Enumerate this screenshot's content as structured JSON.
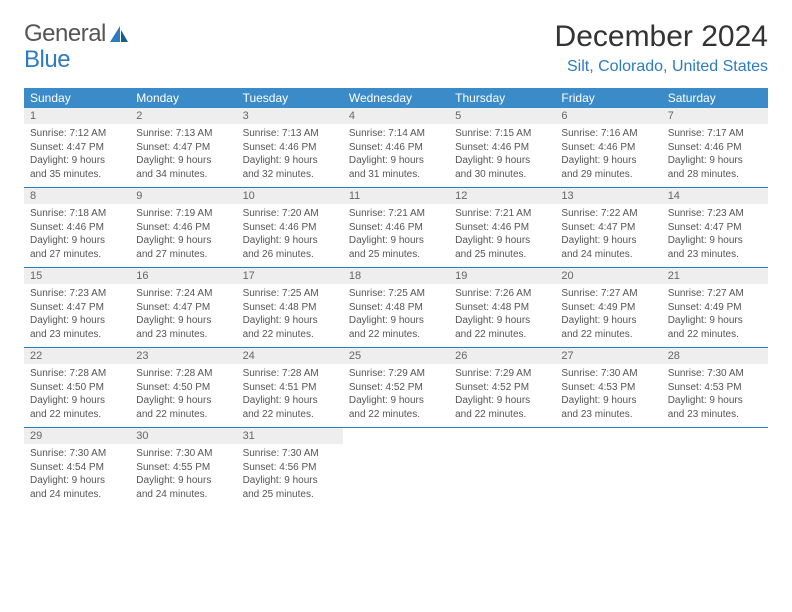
{
  "logo": {
    "word1": "General",
    "word2": "Blue"
  },
  "title": "December 2024",
  "location": "Silt, Colorado, United States",
  "colors": {
    "header_bg": "#3b8bc9",
    "header_text": "#ffffff",
    "accent": "#2b7cc0",
    "daynum_bg": "#eeeeee",
    "text": "#555555",
    "rule": "#2b7cc0"
  },
  "daysOfWeek": [
    "Sunday",
    "Monday",
    "Tuesday",
    "Wednesday",
    "Thursday",
    "Friday",
    "Saturday"
  ],
  "weeks": [
    [
      {
        "n": "1",
        "sunrise": "Sunrise: 7:12 AM",
        "sunset": "Sunset: 4:47 PM",
        "daylight": "Daylight: 9 hours and 35 minutes."
      },
      {
        "n": "2",
        "sunrise": "Sunrise: 7:13 AM",
        "sunset": "Sunset: 4:47 PM",
        "daylight": "Daylight: 9 hours and 34 minutes."
      },
      {
        "n": "3",
        "sunrise": "Sunrise: 7:13 AM",
        "sunset": "Sunset: 4:46 PM",
        "daylight": "Daylight: 9 hours and 32 minutes."
      },
      {
        "n": "4",
        "sunrise": "Sunrise: 7:14 AM",
        "sunset": "Sunset: 4:46 PM",
        "daylight": "Daylight: 9 hours and 31 minutes."
      },
      {
        "n": "5",
        "sunrise": "Sunrise: 7:15 AM",
        "sunset": "Sunset: 4:46 PM",
        "daylight": "Daylight: 9 hours and 30 minutes."
      },
      {
        "n": "6",
        "sunrise": "Sunrise: 7:16 AM",
        "sunset": "Sunset: 4:46 PM",
        "daylight": "Daylight: 9 hours and 29 minutes."
      },
      {
        "n": "7",
        "sunrise": "Sunrise: 7:17 AM",
        "sunset": "Sunset: 4:46 PM",
        "daylight": "Daylight: 9 hours and 28 minutes."
      }
    ],
    [
      {
        "n": "8",
        "sunrise": "Sunrise: 7:18 AM",
        "sunset": "Sunset: 4:46 PM",
        "daylight": "Daylight: 9 hours and 27 minutes."
      },
      {
        "n": "9",
        "sunrise": "Sunrise: 7:19 AM",
        "sunset": "Sunset: 4:46 PM",
        "daylight": "Daylight: 9 hours and 27 minutes."
      },
      {
        "n": "10",
        "sunrise": "Sunrise: 7:20 AM",
        "sunset": "Sunset: 4:46 PM",
        "daylight": "Daylight: 9 hours and 26 minutes."
      },
      {
        "n": "11",
        "sunrise": "Sunrise: 7:21 AM",
        "sunset": "Sunset: 4:46 PM",
        "daylight": "Daylight: 9 hours and 25 minutes."
      },
      {
        "n": "12",
        "sunrise": "Sunrise: 7:21 AM",
        "sunset": "Sunset: 4:46 PM",
        "daylight": "Daylight: 9 hours and 25 minutes."
      },
      {
        "n": "13",
        "sunrise": "Sunrise: 7:22 AM",
        "sunset": "Sunset: 4:47 PM",
        "daylight": "Daylight: 9 hours and 24 minutes."
      },
      {
        "n": "14",
        "sunrise": "Sunrise: 7:23 AM",
        "sunset": "Sunset: 4:47 PM",
        "daylight": "Daylight: 9 hours and 23 minutes."
      }
    ],
    [
      {
        "n": "15",
        "sunrise": "Sunrise: 7:23 AM",
        "sunset": "Sunset: 4:47 PM",
        "daylight": "Daylight: 9 hours and 23 minutes."
      },
      {
        "n": "16",
        "sunrise": "Sunrise: 7:24 AM",
        "sunset": "Sunset: 4:47 PM",
        "daylight": "Daylight: 9 hours and 23 minutes."
      },
      {
        "n": "17",
        "sunrise": "Sunrise: 7:25 AM",
        "sunset": "Sunset: 4:48 PM",
        "daylight": "Daylight: 9 hours and 22 minutes."
      },
      {
        "n": "18",
        "sunrise": "Sunrise: 7:25 AM",
        "sunset": "Sunset: 4:48 PM",
        "daylight": "Daylight: 9 hours and 22 minutes."
      },
      {
        "n": "19",
        "sunrise": "Sunrise: 7:26 AM",
        "sunset": "Sunset: 4:48 PM",
        "daylight": "Daylight: 9 hours and 22 minutes."
      },
      {
        "n": "20",
        "sunrise": "Sunrise: 7:27 AM",
        "sunset": "Sunset: 4:49 PM",
        "daylight": "Daylight: 9 hours and 22 minutes."
      },
      {
        "n": "21",
        "sunrise": "Sunrise: 7:27 AM",
        "sunset": "Sunset: 4:49 PM",
        "daylight": "Daylight: 9 hours and 22 minutes."
      }
    ],
    [
      {
        "n": "22",
        "sunrise": "Sunrise: 7:28 AM",
        "sunset": "Sunset: 4:50 PM",
        "daylight": "Daylight: 9 hours and 22 minutes."
      },
      {
        "n": "23",
        "sunrise": "Sunrise: 7:28 AM",
        "sunset": "Sunset: 4:50 PM",
        "daylight": "Daylight: 9 hours and 22 minutes."
      },
      {
        "n": "24",
        "sunrise": "Sunrise: 7:28 AM",
        "sunset": "Sunset: 4:51 PM",
        "daylight": "Daylight: 9 hours and 22 minutes."
      },
      {
        "n": "25",
        "sunrise": "Sunrise: 7:29 AM",
        "sunset": "Sunset: 4:52 PM",
        "daylight": "Daylight: 9 hours and 22 minutes."
      },
      {
        "n": "26",
        "sunrise": "Sunrise: 7:29 AM",
        "sunset": "Sunset: 4:52 PM",
        "daylight": "Daylight: 9 hours and 22 minutes."
      },
      {
        "n": "27",
        "sunrise": "Sunrise: 7:30 AM",
        "sunset": "Sunset: 4:53 PM",
        "daylight": "Daylight: 9 hours and 23 minutes."
      },
      {
        "n": "28",
        "sunrise": "Sunrise: 7:30 AM",
        "sunset": "Sunset: 4:53 PM",
        "daylight": "Daylight: 9 hours and 23 minutes."
      }
    ],
    [
      {
        "n": "29",
        "sunrise": "Sunrise: 7:30 AM",
        "sunset": "Sunset: 4:54 PM",
        "daylight": "Daylight: 9 hours and 24 minutes."
      },
      {
        "n": "30",
        "sunrise": "Sunrise: 7:30 AM",
        "sunset": "Sunset: 4:55 PM",
        "daylight": "Daylight: 9 hours and 24 minutes."
      },
      {
        "n": "31",
        "sunrise": "Sunrise: 7:30 AM",
        "sunset": "Sunset: 4:56 PM",
        "daylight": "Daylight: 9 hours and 25 minutes."
      },
      null,
      null,
      null,
      null
    ]
  ]
}
